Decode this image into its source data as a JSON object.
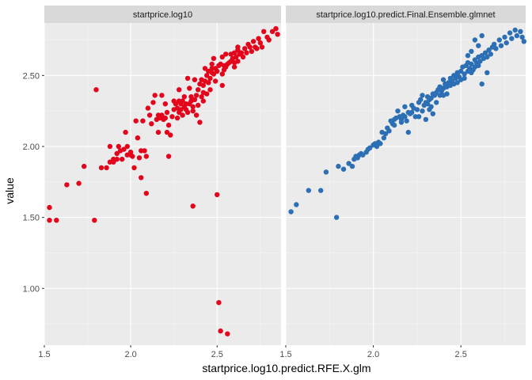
{
  "chart_data": {
    "type": "scatter",
    "xlabel": "startprice.log10.predict.RFE.X.glm",
    "ylabel": "value",
    "xlim": [
      1.5,
      2.87
    ],
    "ylim": [
      0.6,
      2.87
    ],
    "x_ticks": [
      1.5,
      2.0,
      2.5
    ],
    "x_tick_labels": [
      "1.5",
      "2.0",
      "2.5"
    ],
    "y_ticks": [
      1.0,
      1.5,
      2.0,
      2.5
    ],
    "y_tick_labels": [
      "1.00",
      "1.50",
      "2.00",
      "2.50"
    ],
    "grid": true,
    "panels": [
      {
        "strip_label": "startprice.log10",
        "color": "#e3051b",
        "points": [
          [
            1.53,
            1.57
          ],
          [
            1.53,
            1.48
          ],
          [
            1.57,
            1.48
          ],
          [
            1.63,
            1.73
          ],
          [
            1.7,
            1.74
          ],
          [
            1.73,
            1.86
          ],
          [
            1.79,
            1.48
          ],
          [
            1.8,
            2.4
          ],
          [
            1.83,
            1.85
          ],
          [
            1.86,
            1.85
          ],
          [
            1.88,
            2.0
          ],
          [
            1.88,
            1.89
          ],
          [
            1.9,
            1.91
          ],
          [
            1.9,
            1.89
          ],
          [
            1.92,
            1.95
          ],
          [
            1.92,
            1.91
          ],
          [
            1.93,
            2.0
          ],
          [
            1.94,
            1.97
          ],
          [
            1.95,
            1.91
          ],
          [
            1.96,
            1.98
          ],
          [
            1.97,
            2.1
          ],
          [
            1.98,
            2.0
          ],
          [
            1.98,
            1.94
          ],
          [
            2.0,
            1.96
          ],
          [
            2.0,
            1.94
          ],
          [
            2.01,
            1.93
          ],
          [
            2.02,
            1.85
          ],
          [
            2.03,
            2.18
          ],
          [
            2.04,
            2.06
          ],
          [
            2.05,
            1.92
          ],
          [
            2.06,
            1.97
          ],
          [
            2.06,
            1.78
          ],
          [
            2.07,
            2.18
          ],
          [
            2.08,
            1.97
          ],
          [
            2.09,
            1.93
          ],
          [
            2.09,
            1.67
          ],
          [
            2.1,
            2.27
          ],
          [
            2.11,
            2.22
          ],
          [
            2.12,
            2.16
          ],
          [
            2.13,
            2.31
          ],
          [
            2.14,
            2.36
          ],
          [
            2.15,
            2.19
          ],
          [
            2.16,
            2.22
          ],
          [
            2.17,
            2.2
          ],
          [
            2.18,
            2.36
          ],
          [
            2.18,
            2.22
          ],
          [
            2.19,
            2.19
          ],
          [
            2.2,
            2.2
          ],
          [
            2.2,
            2.3
          ],
          [
            2.21,
            2.1
          ],
          [
            2.21,
            2.24
          ],
          [
            2.22,
            2.15
          ],
          [
            2.22,
            1.93
          ],
          [
            2.23,
            2.08
          ],
          [
            2.24,
            2.21
          ],
          [
            2.25,
            2.32
          ],
          [
            2.25,
            2.26
          ],
          [
            2.26,
            2.3
          ],
          [
            2.27,
            2.27
          ],
          [
            2.27,
            2.2
          ],
          [
            2.28,
            2.4
          ],
          [
            2.28,
            2.24
          ],
          [
            2.29,
            2.3
          ],
          [
            2.29,
            2.26
          ],
          [
            2.3,
            2.32
          ],
          [
            2.3,
            2.22
          ],
          [
            2.31,
            2.28
          ],
          [
            2.31,
            2.35
          ],
          [
            2.32,
            2.26
          ],
          [
            2.32,
            2.3
          ],
          [
            2.33,
            2.24
          ],
          [
            2.33,
            2.48
          ],
          [
            2.34,
            2.3
          ],
          [
            2.34,
            2.41
          ],
          [
            2.35,
            2.32
          ],
          [
            2.35,
            2.35
          ],
          [
            2.36,
            2.28
          ],
          [
            2.36,
            1.58
          ],
          [
            2.37,
            2.33
          ],
          [
            2.37,
            2.47
          ],
          [
            2.38,
            2.36
          ],
          [
            2.38,
            2.22
          ],
          [
            2.39,
            2.4
          ],
          [
            2.39,
            2.29
          ],
          [
            2.4,
            2.17
          ],
          [
            2.4,
            2.44
          ],
          [
            2.41,
            2.35
          ],
          [
            2.41,
            2.47
          ],
          [
            2.42,
            2.38
          ],
          [
            2.42,
            2.43
          ],
          [
            2.43,
            2.55
          ],
          [
            2.43,
            2.46
          ],
          [
            2.44,
            2.5
          ],
          [
            2.44,
            2.37
          ],
          [
            2.45,
            2.53
          ],
          [
            2.45,
            2.45
          ],
          [
            2.46,
            2.48
          ],
          [
            2.46,
            2.4
          ],
          [
            2.47,
            2.58
          ],
          [
            2.47,
            2.52
          ],
          [
            2.48,
            2.51
          ],
          [
            2.48,
            2.62
          ],
          [
            2.49,
            2.46
          ],
          [
            2.49,
            2.55
          ],
          [
            2.5,
            2.53
          ],
          [
            2.5,
            1.66
          ],
          [
            2.51,
            2.57
          ],
          [
            2.51,
            0.9
          ],
          [
            2.52,
            2.58
          ],
          [
            2.52,
            0.7
          ],
          [
            2.53,
            2.51
          ],
          [
            2.53,
            2.63
          ],
          [
            2.54,
            2.57
          ],
          [
            2.55,
            2.56
          ],
          [
            2.55,
            2.65
          ],
          [
            2.56,
            2.58
          ],
          [
            2.56,
            0.68
          ],
          [
            2.57,
            2.59
          ],
          [
            2.58,
            2.6
          ],
          [
            2.58,
            2.65
          ],
          [
            2.59,
            2.62
          ],
          [
            2.6,
            2.56
          ],
          [
            2.6,
            2.66
          ],
          [
            2.61,
            2.63
          ],
          [
            2.62,
            2.7
          ],
          [
            2.62,
            2.6
          ],
          [
            2.63,
            2.65
          ],
          [
            2.64,
            2.66
          ],
          [
            2.65,
            2.63
          ],
          [
            2.66,
            2.69
          ],
          [
            2.67,
            2.66
          ],
          [
            2.68,
            2.72
          ],
          [
            2.69,
            2.7
          ],
          [
            2.7,
            2.67
          ],
          [
            2.71,
            2.74
          ],
          [
            2.72,
            2.7
          ],
          [
            2.73,
            2.69
          ],
          [
            2.74,
            2.76
          ],
          [
            2.75,
            2.73
          ],
          [
            2.76,
            2.7
          ],
          [
            2.77,
            2.81
          ],
          [
            2.79,
            2.77
          ],
          [
            2.8,
            2.75
          ],
          [
            2.82,
            2.81
          ],
          [
            2.84,
            2.83
          ],
          [
            2.85,
            2.79
          ],
          [
            2.6,
            2.59
          ],
          [
            2.54,
            2.54
          ],
          [
            2.45,
            2.45
          ],
          [
            2.28,
            2.32
          ],
          [
            2.16,
            2.1
          ],
          [
            2.47,
            2.55
          ],
          [
            2.53,
            2.43
          ],
          [
            2.62,
            2.68
          ],
          [
            2.36,
            2.25
          ],
          [
            2.42,
            2.32
          ]
        ]
      },
      {
        "strip_label": "startprice.log10.predict.Final.Ensemble.glmnet",
        "color": "#2c6fb5",
        "points": [
          [
            1.53,
            1.54
          ],
          [
            1.56,
            1.59
          ],
          [
            1.63,
            1.69
          ],
          [
            1.7,
            1.69
          ],
          [
            1.73,
            1.82
          ],
          [
            1.79,
            1.5
          ],
          [
            1.8,
            1.86
          ],
          [
            1.83,
            1.84
          ],
          [
            1.86,
            1.88
          ],
          [
            1.88,
            1.86
          ],
          [
            1.89,
            1.91
          ],
          [
            1.9,
            1.93
          ],
          [
            1.91,
            1.92
          ],
          [
            1.92,
            1.94
          ],
          [
            1.93,
            1.95
          ],
          [
            1.94,
            1.94
          ],
          [
            1.96,
            1.96
          ],
          [
            1.97,
            1.98
          ],
          [
            1.98,
            1.99
          ],
          [
            2.0,
            2.01
          ],
          [
            2.01,
            2.02
          ],
          [
            2.02,
            2.0
          ],
          [
            2.03,
            2.03
          ],
          [
            2.04,
            2.02
          ],
          [
            2.06,
            2.06
          ],
          [
            2.07,
            2.09
          ],
          [
            2.08,
            2.13
          ],
          [
            2.09,
            2.11
          ],
          [
            2.1,
            2.18
          ],
          [
            2.11,
            2.16
          ],
          [
            2.12,
            2.15
          ],
          [
            2.13,
            2.2
          ],
          [
            2.14,
            2.25
          ],
          [
            2.15,
            2.21
          ],
          [
            2.16,
            2.19
          ],
          [
            2.17,
            2.22
          ],
          [
            2.18,
            2.21
          ],
          [
            2.18,
            2.28
          ],
          [
            2.19,
            2.18
          ],
          [
            2.2,
            2.24
          ],
          [
            2.2,
            2.1
          ],
          [
            2.21,
            2.23
          ],
          [
            2.22,
            2.29
          ],
          [
            2.23,
            2.27
          ],
          [
            2.24,
            2.21
          ],
          [
            2.25,
            2.26
          ],
          [
            2.26,
            2.31
          ],
          [
            2.27,
            2.33
          ],
          [
            2.28,
            2.36
          ],
          [
            2.28,
            2.25
          ],
          [
            2.29,
            2.29
          ],
          [
            2.3,
            2.31
          ],
          [
            2.3,
            2.19
          ],
          [
            2.31,
            2.35
          ],
          [
            2.32,
            2.33
          ],
          [
            2.32,
            2.26
          ],
          [
            2.33,
            2.34
          ],
          [
            2.34,
            2.37
          ],
          [
            2.34,
            2.23
          ],
          [
            2.35,
            2.36
          ],
          [
            2.36,
            2.38
          ],
          [
            2.36,
            2.31
          ],
          [
            2.37,
            2.4
          ],
          [
            2.38,
            2.36
          ],
          [
            2.38,
            2.42
          ],
          [
            2.39,
            2.39
          ],
          [
            2.4,
            2.41
          ],
          [
            2.4,
            2.36
          ],
          [
            2.41,
            2.44
          ],
          [
            2.42,
            2.42
          ],
          [
            2.42,
            2.37
          ],
          [
            2.43,
            2.45
          ],
          [
            2.44,
            2.43
          ],
          [
            2.44,
            2.48
          ],
          [
            2.45,
            2.46
          ],
          [
            2.46,
            2.44
          ],
          [
            2.46,
            2.5
          ],
          [
            2.47,
            2.48
          ],
          [
            2.48,
            2.51
          ],
          [
            2.48,
            2.45
          ],
          [
            2.49,
            2.49
          ],
          [
            2.5,
            2.53
          ],
          [
            2.5,
            2.47
          ],
          [
            2.51,
            2.56
          ],
          [
            2.52,
            2.51
          ],
          [
            2.52,
            2.48
          ],
          [
            2.53,
            2.57
          ],
          [
            2.54,
            2.53
          ],
          [
            2.54,
            2.59
          ],
          [
            2.55,
            2.55
          ],
          [
            2.56,
            2.52
          ],
          [
            2.56,
            2.58
          ],
          [
            2.57,
            2.54
          ],
          [
            2.58,
            2.61
          ],
          [
            2.58,
            2.56
          ],
          [
            2.59,
            2.59
          ],
          [
            2.6,
            2.63
          ],
          [
            2.6,
            2.57
          ],
          [
            2.61,
            2.6
          ],
          [
            2.62,
            2.64
          ],
          [
            2.63,
            2.62
          ],
          [
            2.64,
            2.66
          ],
          [
            2.65,
            2.63
          ],
          [
            2.66,
            2.68
          ],
          [
            2.67,
            2.65
          ],
          [
            2.68,
            2.7
          ],
          [
            2.69,
            2.72
          ],
          [
            2.7,
            2.69
          ],
          [
            2.72,
            2.75
          ],
          [
            2.73,
            2.71
          ],
          [
            2.75,
            2.77
          ],
          [
            2.76,
            2.73
          ],
          [
            2.78,
            2.8
          ],
          [
            2.79,
            2.76
          ],
          [
            2.81,
            2.82
          ],
          [
            2.82,
            2.78
          ],
          [
            2.84,
            2.81
          ],
          [
            2.85,
            2.77
          ],
          [
            2.86,
            2.74
          ],
          [
            2.58,
            2.75
          ],
          [
            2.6,
            2.71
          ],
          [
            2.62,
            2.78
          ],
          [
            2.56,
            2.67
          ],
          [
            2.48,
            2.52
          ],
          [
            2.4,
            2.41
          ],
          [
            2.31,
            2.3
          ],
          [
            2.22,
            2.24
          ],
          [
            2.16,
            2.17
          ],
          [
            2.62,
            2.44
          ],
          [
            2.65,
            2.52
          ],
          [
            2.4,
            2.47
          ],
          [
            2.33,
            2.28
          ],
          [
            2.26,
            2.21
          ],
          [
            2.05,
            2.1
          ],
          [
            2.12,
            2.19
          ],
          [
            2.54,
            2.64
          ]
        ]
      }
    ]
  }
}
